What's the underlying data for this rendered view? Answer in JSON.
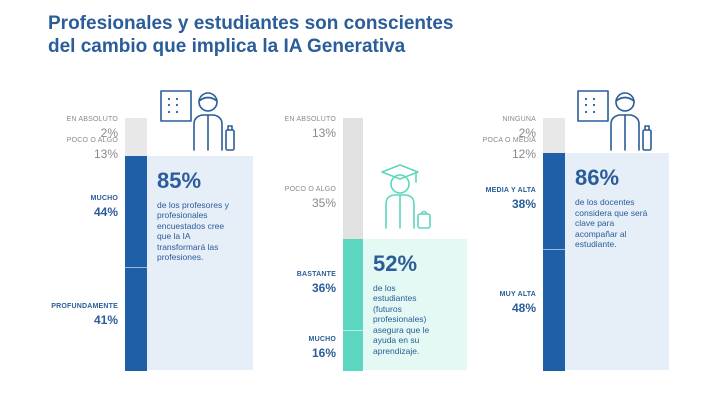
{
  "title": {
    "line1": "Profesionales y estudiantes son conscientes",
    "line2": "del cambio que implica la IA Generativa"
  },
  "colors": {
    "title": "#2a5d99",
    "bar_dark_blue": "#1f5fa8",
    "bar_teal": "#5dd6bf",
    "bar_light_grey": "#e8e8e8",
    "bar_mid_grey": "#e1e1e1",
    "panel_blue": "#e6eef8",
    "panel_teal": "#e4f8f4",
    "grey_text": "#8a8a8a",
    "icon_blue": "#2a5d99",
    "icon_teal": "#5dd6bf"
  },
  "chart_data": [
    {
      "type": "bar",
      "orientation": "stacked-vertical",
      "icon": "teacher-icon",
      "categories": [
        "EN ABSOLUTO",
        "POCO O ALGO",
        "MUCHO",
        "PROFUNDAMENTE"
      ],
      "values": [
        2,
        13,
        44,
        41
      ],
      "value_labels": [
        "2%",
        "13%",
        "44%",
        "41%"
      ],
      "highlight": {
        "value": "85%",
        "text": "de los profesores y profesionales encuestados cree que la IA transformará las profesiones."
      }
    },
    {
      "type": "bar",
      "orientation": "stacked-vertical",
      "icon": "graduate-student-icon",
      "categories": [
        "EN ABSOLUTO",
        "POCO O ALGO",
        "BASTANTE",
        "MUCHO"
      ],
      "values": [
        13,
        35,
        36,
        16
      ],
      "value_labels": [
        "13%",
        "35%",
        "36%",
        "16%"
      ],
      "highlight": {
        "value": "52%",
        "text": "de los estudiantes (futuros profesionales) asegura que le ayuda en su aprendizaje."
      }
    },
    {
      "type": "bar",
      "orientation": "stacked-vertical",
      "icon": "teacher-icon",
      "categories": [
        "NINGUNA",
        "POCA O MEDIA",
        "MEDIA Y ALTA",
        "MUY ALTA"
      ],
      "values": [
        2,
        12,
        38,
        48
      ],
      "value_labels": [
        "2%",
        "12%",
        "38%",
        "48%"
      ],
      "highlight": {
        "value": "86%",
        "text": "de los docentes considera que será clave para acompañar al estudiante."
      }
    }
  ]
}
